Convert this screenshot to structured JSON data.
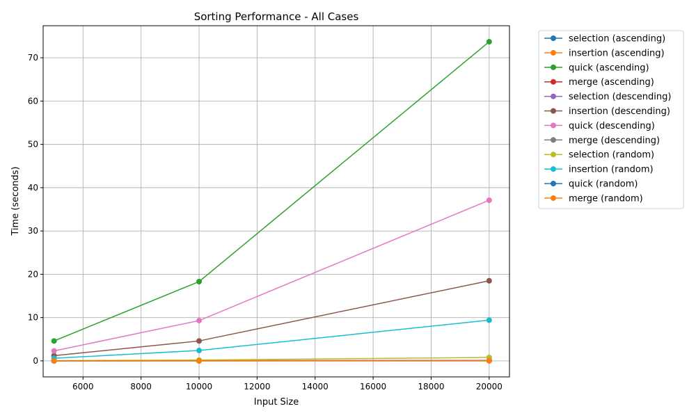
{
  "chart_data": {
    "type": "line",
    "title": "Sorting Performance - All Cases",
    "xlabel": "Input Size",
    "ylabel": "Time (seconds)",
    "xlim": [
      4625,
      20700
    ],
    "ylim": [
      -3.7,
      77.4
    ],
    "xticks": [
      6000,
      8000,
      10000,
      12000,
      14000,
      16000,
      18000,
      20000
    ],
    "yticks": [
      0,
      10,
      20,
      30,
      40,
      50,
      60,
      70
    ],
    "grid": true,
    "legend_position": "outside-top-right",
    "x": [
      5000,
      10000,
      20000
    ],
    "series": [
      {
        "name": "selection (ascending)",
        "color": "#1f77b4",
        "values": [
          0.01,
          0.02,
          0.04
        ]
      },
      {
        "name": "insertion (ascending)",
        "color": "#ff7f0e",
        "values": [
          0.0,
          0.0,
          0.01
        ]
      },
      {
        "name": "quick (ascending)",
        "color": "#2ca02c",
        "values": [
          4.6,
          18.3,
          73.7
        ]
      },
      {
        "name": "merge (ascending)",
        "color": "#d62728",
        "values": [
          0.02,
          0.03,
          0.06
        ]
      },
      {
        "name": "selection (descending)",
        "color": "#9467bd",
        "values": [
          0.03,
          0.06,
          0.12
        ]
      },
      {
        "name": "insertion (descending)",
        "color": "#8c564b",
        "values": [
          1.2,
          4.6,
          18.5
        ]
      },
      {
        "name": "quick (descending)",
        "color": "#e377c2",
        "values": [
          2.3,
          9.3,
          37.1
        ]
      },
      {
        "name": "merge (descending)",
        "color": "#7f7f7f",
        "values": [
          0.02,
          0.04,
          0.08
        ]
      },
      {
        "name": "selection (random)",
        "color": "#bcbd22",
        "values": [
          0.05,
          0.2,
          0.8
        ]
      },
      {
        "name": "insertion (random)",
        "color": "#17becf",
        "values": [
          0.6,
          2.4,
          9.4
        ]
      },
      {
        "name": "quick (random)",
        "color": "#1f77b4",
        "values": [
          0.0,
          0.01,
          0.02
        ]
      },
      {
        "name": "merge (random)",
        "color": "#ff7f0e",
        "values": [
          0.0,
          0.01,
          0.02
        ]
      }
    ]
  }
}
